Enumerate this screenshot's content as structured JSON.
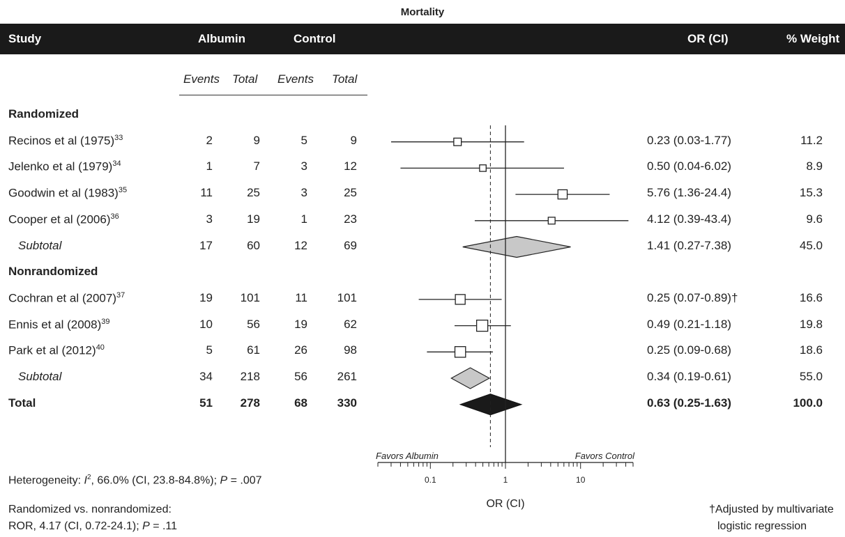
{
  "chart_data": {
    "type": "forest",
    "title": "Mortality",
    "headers": {
      "study": "Study",
      "albumin": "Albumin",
      "control": "Control",
      "or_ci": "OR (CI)",
      "weight": "% Weight",
      "events": "Events",
      "total": "Total"
    },
    "groups": [
      {
        "label": "Randomized",
        "studies": [
          {
            "name": "Recinos et al (1975)",
            "ref": "33",
            "alb_events": "2",
            "alb_total": "9",
            "ctl_events": "5",
            "ctl_total": "9",
            "or": 0.23,
            "lo": 0.03,
            "hi": 1.77,
            "or_text": "0.23 (0.03-1.77)",
            "weight": "11.2"
          },
          {
            "name": "Jelenko et al (1979)",
            "ref": "34",
            "alb_events": "1",
            "alb_total": "7",
            "ctl_events": "3",
            "ctl_total": "12",
            "or": 0.5,
            "lo": 0.04,
            "hi": 6.02,
            "or_text": "0.50 (0.04-6.02)",
            "weight": "8.9"
          },
          {
            "name": "Goodwin et al (1983)",
            "ref": "35",
            "alb_events": "11",
            "alb_total": "25",
            "ctl_events": "3",
            "ctl_total": "25",
            "or": 5.76,
            "lo": 1.36,
            "hi": 24.4,
            "or_text": "5.76 (1.36-24.4)",
            "weight": "15.3"
          },
          {
            "name": "Cooper et al (2006)",
            "ref": "36",
            "alb_events": "3",
            "alb_total": "19",
            "ctl_events": "1",
            "ctl_total": "23",
            "or": 4.12,
            "lo": 0.39,
            "hi": 43.4,
            "or_text": "4.12 (0.39-43.4)",
            "weight": "9.6"
          }
        ],
        "subtotal": {
          "label": "Subtotal",
          "alb_events": "17",
          "alb_total": "60",
          "ctl_events": "12",
          "ctl_total": "69",
          "or": 1.41,
          "lo": 0.27,
          "hi": 7.38,
          "or_text": "1.41 (0.27-7.38)",
          "weight": "45.0"
        }
      },
      {
        "label": "Nonrandomized",
        "studies": [
          {
            "name": "Cochran et al (2007)",
            "ref": "37",
            "alb_events": "19",
            "alb_total": "101",
            "ctl_events": "11",
            "ctl_total": "101",
            "or": 0.25,
            "lo": 0.07,
            "hi": 0.89,
            "or_text": "0.25 (0.07-0.89)†",
            "weight": "16.6"
          },
          {
            "name": "Ennis et al (2008)",
            "ref": "39",
            "alb_events": "10",
            "alb_total": "56",
            "ctl_events": "19",
            "ctl_total": "62",
            "or": 0.49,
            "lo": 0.21,
            "hi": 1.18,
            "or_text": "0.49 (0.21-1.18)",
            "weight": "19.8"
          },
          {
            "name": "Park et al (2012)",
            "ref": "40",
            "alb_events": "5",
            "alb_total": "61",
            "ctl_events": "26",
            "ctl_total": "98",
            "or": 0.25,
            "lo": 0.09,
            "hi": 0.68,
            "or_text": "0.25 (0.09-0.68)",
            "weight": "18.6"
          }
        ],
        "subtotal": {
          "label": "Subtotal",
          "alb_events": "34",
          "alb_total": "218",
          "ctl_events": "56",
          "ctl_total": "261",
          "or": 0.34,
          "lo": 0.19,
          "hi": 0.61,
          "or_text": "0.34 (0.19-0.61)",
          "weight": "55.0"
        }
      }
    ],
    "total": {
      "label": "Total",
      "alb_events": "51",
      "alb_total": "278",
      "ctl_events": "68",
      "ctl_total": "330",
      "or": 0.63,
      "lo": 0.25,
      "hi": 1.63,
      "or_text": "0.63 (0.25-1.63)",
      "weight": "100.0"
    },
    "axis": {
      "scale": "log",
      "xlim": [
        0.02,
        50
      ],
      "ticks": [
        "0.1",
        "1",
        "10"
      ],
      "xlabel": "OR (CI)",
      "favors_left": "Favors Albumin",
      "favors_right": "Favors Control",
      "null_line": 1,
      "pooled_line": 0.63
    },
    "colors": {
      "header_bg": "#1a1a1a",
      "diamond_fill": "#c8c8c8",
      "total_fill": "#1a1a1a"
    }
  },
  "footer": {
    "heterogeneity_prefix": "Heterogeneity: ",
    "heterogeneity_i": "I",
    "heterogeneity_sup": "2",
    "heterogeneity_text": ", 66.0% (CI, 23.8-84.8%); ",
    "heterogeneity_p_label": "P",
    "heterogeneity_p": " = .007",
    "rvn_line1": "Randomized vs. nonrandomized:",
    "rvn_line2": "ROR, 4.17 (CI, 0.72-24.1); ",
    "rvn_p_label": "P",
    "rvn_p": " = .11",
    "note_line1": "†Adjusted by multivariate",
    "note_line2": "logistic regression"
  }
}
